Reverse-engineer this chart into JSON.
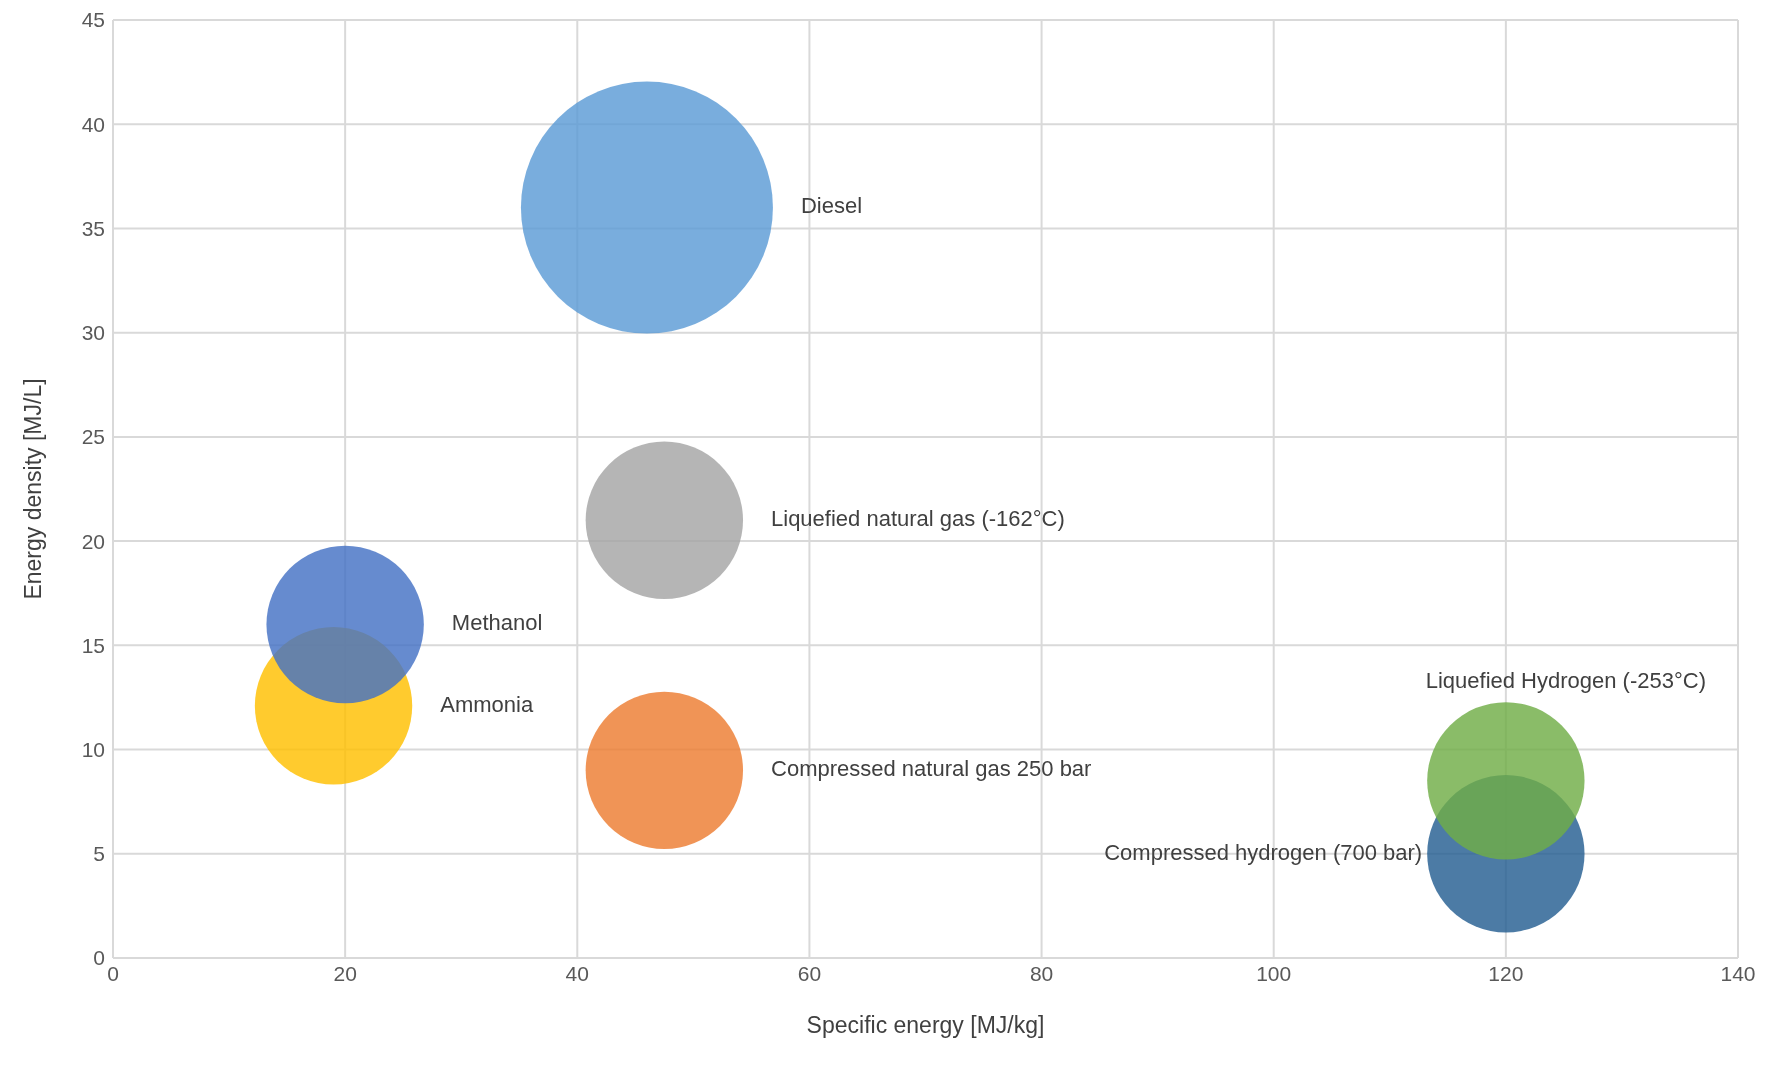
{
  "chart_data": {
    "type": "bubble",
    "xlabel": "Specific energy [MJ/kg]",
    "ylabel": "Energy density [MJ/L]",
    "xlim": [
      0,
      140
    ],
    "xticks": [
      0,
      20,
      40,
      60,
      80,
      100,
      120,
      140
    ],
    "ylim": [
      0,
      45
    ],
    "yticks": [
      0,
      5,
      10,
      15,
      20,
      25,
      30,
      35,
      40,
      45
    ],
    "grid": true,
    "series": [
      {
        "name": "Diesel",
        "color": "#5b9bd5",
        "x": [
          46
        ],
        "values": [
          36
        ],
        "sizes": [
          1
        ]
      },
      {
        "name": "Liquefied natural gas (-162°C)",
        "color": "#a5a5a5",
        "x": [
          47.5
        ],
        "values": [
          21
        ],
        "sizes": [
          0.39
        ]
      },
      {
        "name": "Ammonia",
        "color": "#ffc000",
        "x": [
          19
        ],
        "values": [
          12.1
        ],
        "sizes": [
          0.39
        ]
      },
      {
        "name": "Methanol",
        "color": "#4472c4",
        "x": [
          20
        ],
        "values": [
          16
        ],
        "sizes": [
          0.39
        ]
      },
      {
        "name": "Compressed natural gas 250 bar",
        "color": "#ed7d31",
        "x": [
          47.5
        ],
        "values": [
          9
        ],
        "sizes": [
          0.39
        ]
      },
      {
        "name": "Compressed hydrogen (700 bar)",
        "color": "#255e91",
        "x": [
          120
        ],
        "values": [
          5
        ],
        "sizes": [
          0.39
        ]
      },
      {
        "name": "Liquefied Hydrogen (-253°C)",
        "color": "#70ad47",
        "x": [
          120
        ],
        "values": [
          8.5
        ],
        "sizes": [
          0.39
        ]
      }
    ]
  }
}
